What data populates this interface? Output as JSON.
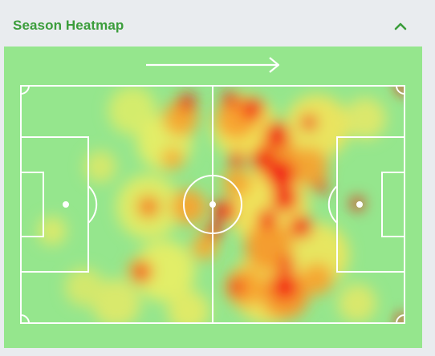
{
  "panel": {
    "title": "Season Heatmap",
    "toggle_icon": "chevron-up-icon",
    "accent_color": "#3b9d3b",
    "pitch_color": "#95e68d",
    "direction_icon": "arrow-right-icon",
    "attack_direction": "right"
  }
}
